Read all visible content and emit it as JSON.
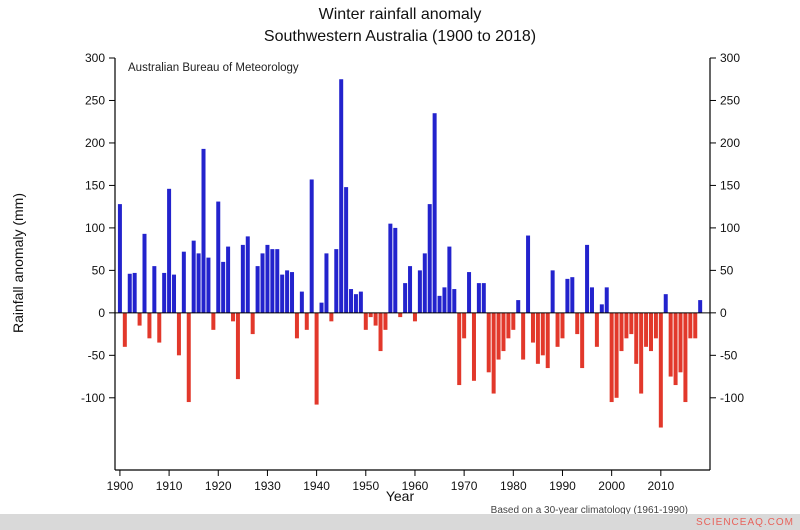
{
  "title_line1": "Winter rainfall anomaly",
  "title_line2": "Southwestern Australia (1900 to 2018)",
  "annotation": "Australian Bureau of Meteorology",
  "footnote": "Based on a 30-year climatology (1961-1990)",
  "watermark": "SCIENCEAQ.COM",
  "chart_data": {
    "type": "bar",
    "title": "Winter rainfall anomaly — Southwestern Australia (1900 to 2018)",
    "xlabel": "Year",
    "ylabel": "Rainfall anomaly (mm)",
    "x_start_year": 1900,
    "x_end_year": 2018,
    "xlim": [
      1899,
      2020
    ],
    "ylim": [
      -185,
      300
    ],
    "grid": false,
    "legend": "none",
    "positive_color": "#2323cd",
    "negative_color": "#e2382b",
    "axis_color": "#000000",
    "yticks": [
      300,
      250,
      200,
      150,
      100,
      50,
      0,
      -50,
      -100
    ],
    "xticks": [
      1900,
      1910,
      1920,
      1930,
      1940,
      1950,
      1960,
      1970,
      1980,
      1990,
      2000,
      2010
    ],
    "values": [
      128,
      -40,
      46,
      47,
      -15,
      93,
      -30,
      55,
      -35,
      47,
      146,
      45,
      -50,
      72,
      -105,
      85,
      70,
      193,
      65,
      -20,
      131,
      60,
      78,
      -10,
      -78,
      80,
      90,
      -25,
      55,
      70,
      80,
      75,
      75,
      45,
      50,
      48,
      -30,
      25,
      -20,
      157,
      -108,
      12,
      70,
      -10,
      75,
      275,
      148,
      28,
      22,
      25,
      -20,
      -5,
      -15,
      -45,
      -20,
      105,
      100,
      -5,
      35,
      55,
      -10,
      50,
      70,
      128,
      235,
      20,
      30,
      78,
      28,
      -85,
      -30,
      48,
      -80,
      35,
      35,
      -70,
      -95,
      -55,
      -45,
      -30,
      -20,
      15,
      -55,
      91,
      -35,
      -60,
      -50,
      -65,
      50,
      -40,
      -30,
      40,
      42,
      -25,
      -65,
      80,
      30,
      -40,
      10,
      30,
      -105,
      -100,
      -45,
      -30,
      -25,
      -60,
      -95,
      -40,
      -45,
      -30,
      -135,
      22,
      -75,
      -85,
      -70,
      -105,
      -30,
      -30,
      15
    ]
  }
}
